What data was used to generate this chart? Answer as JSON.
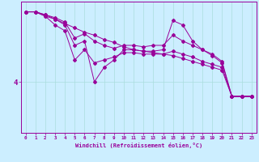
{
  "background_color": "#cceeff",
  "line_color": "#990099",
  "grid_color": "#aadddd",
  "xlabel": "Windchill (Refroidissement éolien,°C)",
  "y_tick_label": "4",
  "y_tick_value": 4,
  "xlim": [
    -0.5,
    23.5
  ],
  "ylim": [
    0.5,
    9.5
  ],
  "lines_y": [
    [
      8.8,
      8.8,
      8.6,
      8.4,
      8.1,
      7.0,
      7.3,
      6.8,
      6.5,
      6.3,
      6.5,
      6.5,
      6.4,
      6.5,
      6.5,
      7.2,
      6.8,
      6.5,
      6.2,
      5.8,
      5.3,
      3.0,
      3.0,
      3.0
    ],
    [
      8.8,
      8.8,
      8.6,
      8.3,
      7.9,
      6.5,
      6.8,
      4.0,
      5.0,
      5.5,
      6.2,
      6.2,
      6.1,
      6.1,
      6.2,
      8.2,
      7.9,
      6.8,
      6.2,
      5.9,
      5.4,
      3.0,
      3.0,
      3.0
    ],
    [
      8.8,
      8.8,
      8.5,
      7.9,
      7.5,
      5.5,
      6.2,
      5.3,
      5.5,
      5.7,
      6.0,
      6.0,
      5.9,
      5.9,
      5.9,
      6.1,
      5.9,
      5.7,
      5.4,
      5.2,
      5.0,
      3.0,
      3.0,
      3.0
    ],
    [
      8.8,
      8.8,
      8.5,
      8.3,
      8.0,
      7.7,
      7.4,
      7.2,
      6.9,
      6.7,
      6.4,
      6.2,
      6.1,
      6.0,
      5.9,
      5.8,
      5.6,
      5.4,
      5.2,
      5.0,
      4.8,
      3.0,
      3.0,
      3.0
    ]
  ]
}
